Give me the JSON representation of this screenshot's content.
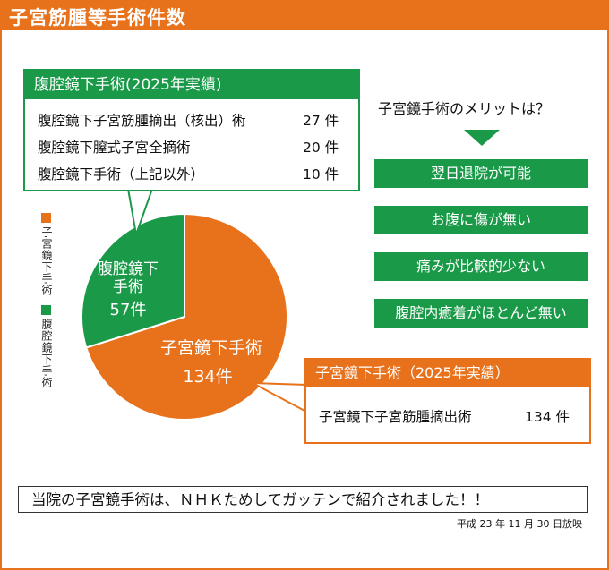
{
  "header": {
    "title": "子宮筋腫等手術件数"
  },
  "legend": [
    {
      "label": "子宮鏡下手術",
      "color": "#e8721c"
    },
    {
      "label": "腹腔鏡下手術",
      "color": "#1a9a48"
    }
  ],
  "chart_data": {
    "type": "pie",
    "slices": [
      {
        "name": "子宮鏡下手術",
        "value": 134,
        "count_label": "134件",
        "color": "#e8721c"
      },
      {
        "name": "腹腔鏡下手術",
        "value": 57,
        "count_label": "57件",
        "color": "#1a9a48"
      }
    ],
    "labels": {
      "hysteroscopy": [
        "子宮鏡下手術",
        "134件"
      ],
      "laparoscopy": [
        "腹腔鏡下",
        "手術",
        "57件"
      ]
    }
  },
  "laparoscopy_box": {
    "title": "腹腔鏡下手術(2025年実績)",
    "rows": [
      {
        "label": "腹腔鏡下子宮筋腫摘出（核出）術",
        "value": "27 件"
      },
      {
        "label": "腹腔鏡下膣式子宮全摘術",
        "value": "20 件"
      },
      {
        "label": "腹腔鏡下手術（上記以外）",
        "value": "10 件"
      }
    ]
  },
  "hysteroscopy_box": {
    "title": "子宮鏡下手術（2025年実績）",
    "rows": [
      {
        "label": "子宮鏡下子宮筋腫摘出術",
        "value": "134 件"
      }
    ]
  },
  "merits": {
    "title": "子宮鏡手術のメリットは？",
    "items": [
      "翌日退院が可能",
      "お腹に傷が無い",
      "痛みが比較的少ない",
      "腹腔内癒着がほとんど無い"
    ]
  },
  "footer": {
    "text": "当院の子宮鏡手術は、ＮＨＫためしてガッテンで紹介されました！！",
    "note": "平成 23 年 11 月 30 日放映"
  }
}
